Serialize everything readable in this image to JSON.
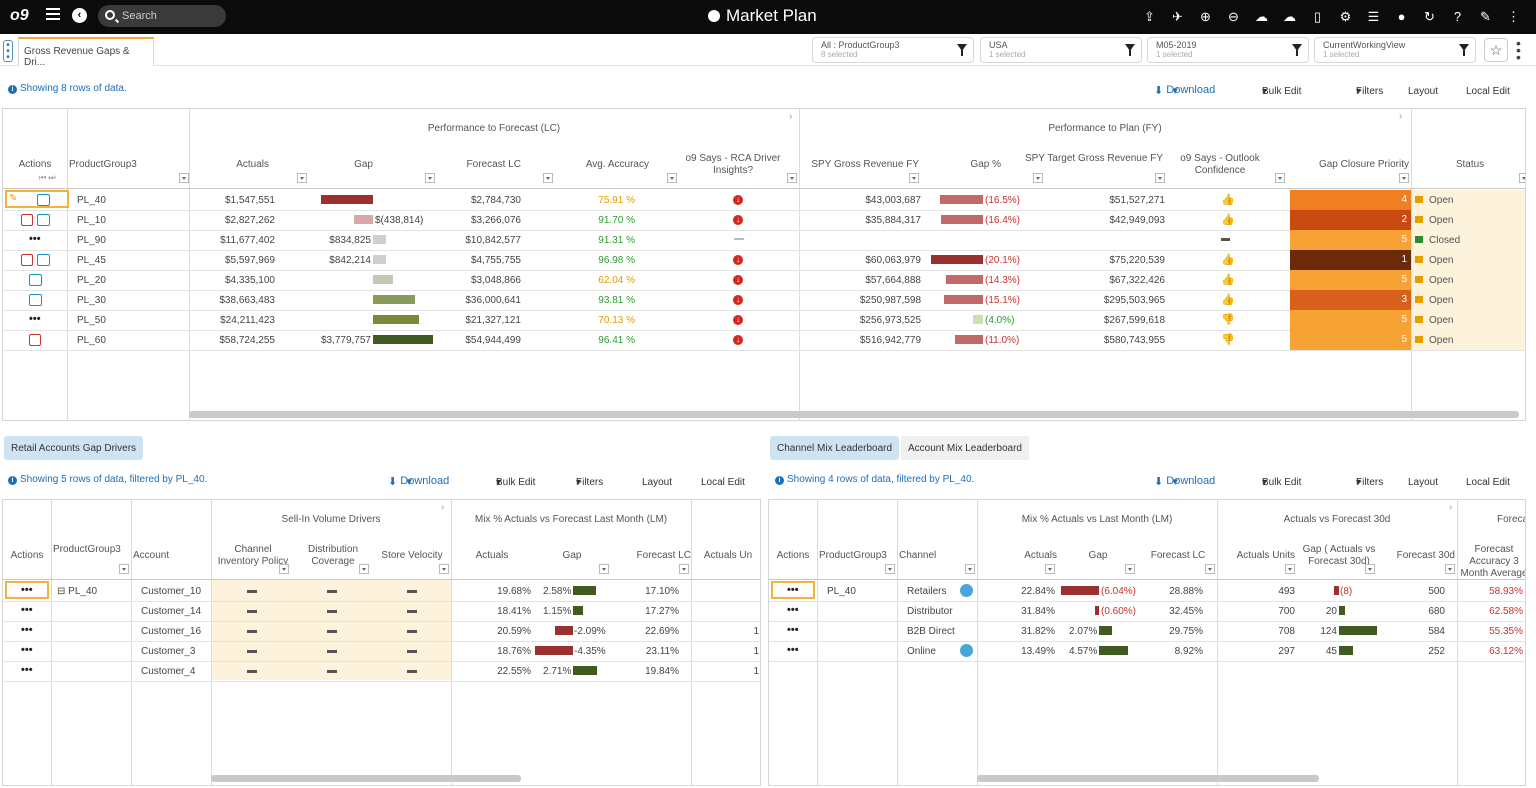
{
  "topbar": {
    "logo": "o9",
    "search_placeholder": "Search",
    "title": "Market Plan"
  },
  "tab": {
    "label": "Gross Revenue Gaps & Dri..."
  },
  "filters": [
    {
      "line1": "All : ProductGroup3",
      "line2": "8 selected"
    },
    {
      "line1": "USA",
      "line2": "1 selected"
    },
    {
      "line1": "M05-2019",
      "line2": "1 selected"
    },
    {
      "line1": "CurrentWorkingView",
      "line2": "1 selected"
    }
  ],
  "toolbar": {
    "download": "Download",
    "bulk_edit": "Bulk Edit",
    "filters": "Filters",
    "layout": "Layout",
    "local_edit": "Local Edit"
  },
  "main": {
    "info": "Showing 8 rows of data.",
    "group_forecast": "Performance to Forecast (LC)",
    "group_plan": "Performance to Plan (FY)",
    "headers": [
      "Actions",
      "ProductGroup3",
      "Actuals",
      "Gap",
      "Forecast LC",
      "Avg. Accuracy",
      "o9 Says - RCA Driver Insights?",
      "SPY Gross Revenue FY",
      "Gap %",
      "SPY Target Gross Revenue FY",
      "o9 Says - Outlook Confidence",
      "Gap Closure Priority",
      "Status"
    ],
    "rows": [
      {
        "pg": "PL_40",
        "actuals": "$1,547,551",
        "gap": "",
        "forecast": "$2,784,730",
        "acc": "75.91 %",
        "acc_c": "org",
        "rca": "red",
        "spy": "$43,003,687",
        "gappct": "(16.5%)",
        "target": "$51,527,271",
        "thumb": "org",
        "prio": "4",
        "status": "Open",
        "flag": "org"
      },
      {
        "pg": "PL_10",
        "actuals": "$2,827,262",
        "gap": "$(438,814)",
        "forecast": "$3,266,076",
        "acc": "91.70 %",
        "acc_c": "grn",
        "rca": "red",
        "spy": "$35,884,317",
        "gappct": "(16.4%)",
        "target": "$42,949,093",
        "thumb": "org",
        "prio": "2",
        "status": "Open",
        "flag": "org"
      },
      {
        "pg": "PL_90",
        "actuals": "$11,677,402",
        "gap": "$834,825",
        "forecast": "$10,842,577",
        "acc": "91.31 %",
        "acc_c": "grn",
        "rca": "dash",
        "spy": "",
        "gappct": "",
        "target": "",
        "thumb": "dash",
        "prio": "5",
        "status": "Closed",
        "flag": "grn"
      },
      {
        "pg": "PL_45",
        "actuals": "$5,597,969",
        "gap": "$842,214",
        "forecast": "$4,755,755",
        "acc": "96.98 %",
        "acc_c": "grn",
        "rca": "red",
        "spy": "$60,063,979",
        "gappct": "(20.1%)",
        "target": "$75,220,539",
        "thumb": "grn",
        "prio": "1",
        "status": "Open",
        "flag": "org"
      },
      {
        "pg": "PL_20",
        "actuals": "$4,335,100",
        "gap": "",
        "forecast": "$3,048,866",
        "acc": "62.04 %",
        "acc_c": "org",
        "rca": "red",
        "spy": "$57,664,888",
        "gappct": "(14.3%)",
        "target": "$67,322,426",
        "thumb": "org",
        "prio": "5",
        "status": "Open",
        "flag": "org"
      },
      {
        "pg": "PL_30",
        "actuals": "$38,663,483",
        "gap": "",
        "forecast": "$36,000,641",
        "acc": "93.81 %",
        "acc_c": "grn",
        "rca": "red",
        "spy": "$250,987,598",
        "gappct": "(15.1%)",
        "target": "$295,503,965",
        "thumb": "grn",
        "prio": "3",
        "status": "Open",
        "flag": "org"
      },
      {
        "pg": "PL_50",
        "actuals": "$24,211,423",
        "gap": "",
        "forecast": "$21,327,121",
        "acc": "70.13 %",
        "acc_c": "org",
        "rca": "red",
        "spy": "$256,973,525",
        "gappct": "(4.0%)",
        "target": "$267,599,618",
        "thumb": "red",
        "prio": "5",
        "status": "Open",
        "flag": "org"
      },
      {
        "pg": "PL_60",
        "actuals": "$58,724,255",
        "gap": "$3,779,757",
        "forecast": "$54,944,499",
        "acc": "96.41 %",
        "acc_c": "grn",
        "rca": "red",
        "spy": "$516,942,779",
        "gappct": "(11.0%)",
        "target": "$580,743,955",
        "thumb": "red",
        "prio": "5",
        "status": "Open",
        "flag": "org"
      }
    ]
  },
  "left": {
    "button": "Retail Accounts Gap Drivers",
    "info": "Showing 5 rows of data, filtered by PL_40.",
    "group_sellin": "Sell-In Volume Drivers",
    "group_mix": "Mix % Actuals vs Forecast Last Month (LM)",
    "headers": [
      "Actions",
      "ProductGroup3",
      "Account",
      "Channel Inventory Policy",
      "Distribution Coverage",
      "Store Velocity",
      "Actuals",
      "Gap",
      "Forecast LC",
      "Actuals Un"
    ],
    "rows": [
      {
        "pg": "PL_40",
        "acct": "Customer_10",
        "act": "19.68%",
        "gap": "2.58%",
        "fc": "17.10%",
        "extra": ""
      },
      {
        "pg": "",
        "acct": "Customer_14",
        "act": "18.41%",
        "gap": "1.15%",
        "fc": "17.27%",
        "extra": ""
      },
      {
        "pg": "",
        "acct": "Customer_16",
        "act": "20.59%",
        "gap": "-2.09%",
        "fc": "22.69%",
        "extra": "1"
      },
      {
        "pg": "",
        "acct": "Customer_3",
        "act": "18.76%",
        "gap": "-4.35%",
        "fc": "23.11%",
        "extra": "1"
      },
      {
        "pg": "",
        "acct": "Customer_4",
        "act": "22.55%",
        "gap": "2.71%",
        "fc": "19.84%",
        "extra": "1"
      }
    ]
  },
  "right": {
    "tab1": "Channel Mix Leaderboard",
    "tab2": "Account Mix Leaderboard",
    "info": "Showing 4 rows of data, filtered by PL_40.",
    "group_mix": "Mix % Actuals vs Last Month (LM)",
    "group_af": "Actuals vs Forecast 30d",
    "group_fore": "Foreca",
    "headers": [
      "Actions",
      "ProductGroup3",
      "Channel",
      "Actuals",
      "Gap",
      "Forecast LC",
      "Actuals Units",
      "Gap ( Actuals vs Forecast 30d)",
      "Forecast 30d",
      "Forecast Accuracy 3 Month Average"
    ],
    "rows": [
      {
        "pg": "PL_40",
        "ch": "Retailers",
        "act": "22.84%",
        "gap": "(6.04%)",
        "fc": "28.88%",
        "units": "493",
        "gap2": "(8)",
        "f30": "500",
        "accm": "58.93%"
      },
      {
        "pg": "",
        "ch": "Distributor",
        "act": "31.84%",
        "gap": "(0.60%)",
        "fc": "32.45%",
        "units": "700",
        "gap2": "20",
        "f30": "680",
        "accm": "62.58%"
      },
      {
        "pg": "",
        "ch": "B2B Direct",
        "act": "31.82%",
        "gap": "2.07%",
        "fc": "29.75%",
        "units": "708",
        "gap2": "124",
        "f30": "584",
        "accm": "55.35%"
      },
      {
        "pg": "",
        "ch": "Online",
        "act": "13.49%",
        "gap": "4.57%",
        "fc": "8.92%",
        "units": "297",
        "gap2": "45",
        "f30": "252",
        "accm": "63.12%"
      }
    ]
  },
  "colors": {
    "accent": "#1d6fb8",
    "dark_red": "#9b3030",
    "pink": "#d9a7a7",
    "olive": "#6b7a3a",
    "dark_olive": "#405a20",
    "orange": "#f5a53a",
    "prio1": "#6b2a0a",
    "prio_mid": "#d8601a"
  }
}
